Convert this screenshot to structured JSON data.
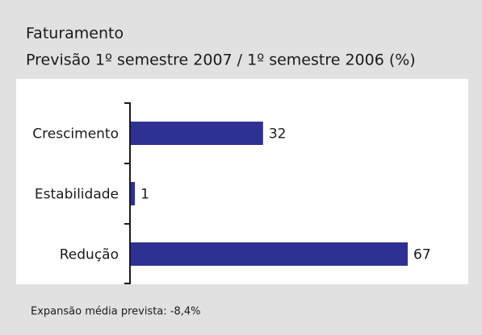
{
  "chart_data": {
    "type": "bar",
    "orientation": "horizontal",
    "title": "Faturamento",
    "subtitle": "Previsão 1º semestre 2007 / 1º semestre 2006 (%)",
    "categories": [
      "Crescimento",
      "Estabilidade",
      "Redução"
    ],
    "values": [
      32,
      1,
      67
    ],
    "color": "#2e3192",
    "xlim": [
      0,
      67
    ],
    "annotation": "Expansão média prevista: -8,4%"
  }
}
